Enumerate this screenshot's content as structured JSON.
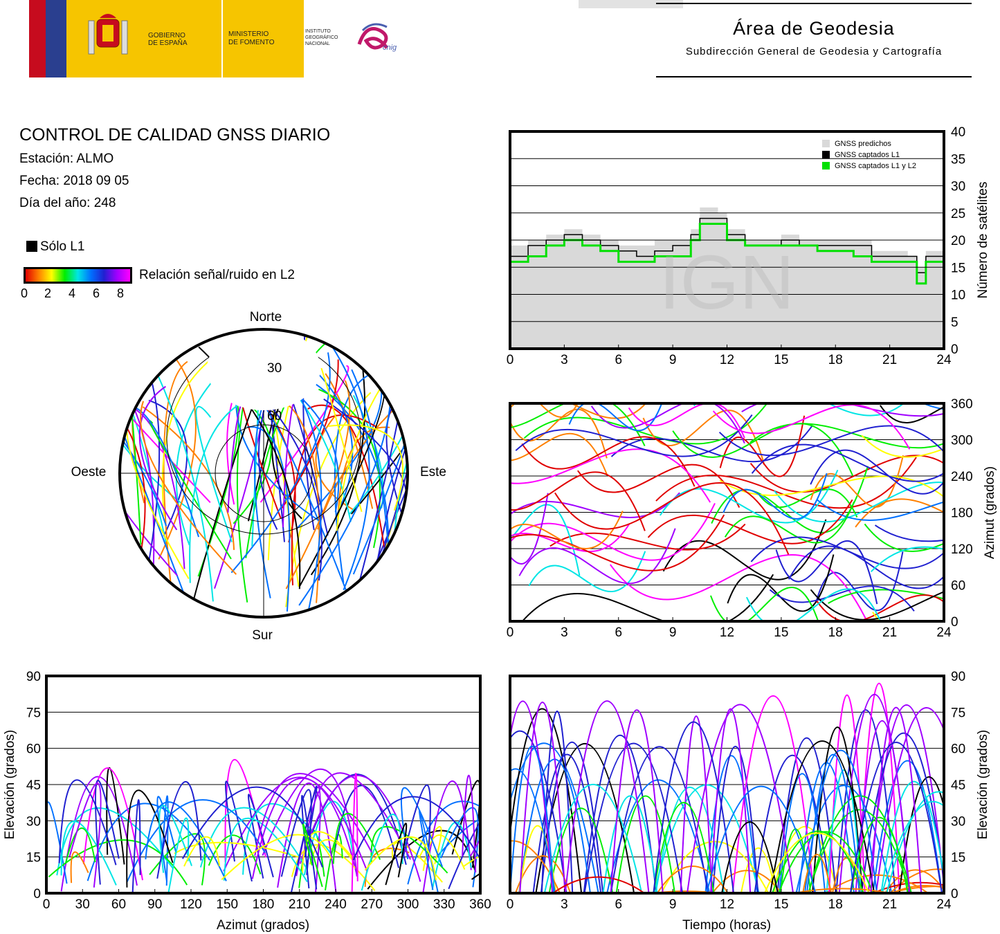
{
  "header": {
    "gov_line1": "GOBIERNO",
    "gov_line2": "DE ESPAÑA",
    "min_line1": "MINISTERIO",
    "min_line2": "DE FOMENTO",
    "ign_line1": "INSTITUTO",
    "ign_line2": "GEOGRÁFICO",
    "ign_line3": "NACIONAL",
    "cnig": "cnig",
    "area_title": "Área de Geodesia",
    "area_subtitle": "Subdirección General de Geodesia y Cartografía"
  },
  "info": {
    "title": "CONTROL DE CALIDAD GNSS DIARIO",
    "station": "Estación: ALMO",
    "date": "Fecha: 2018 09 05",
    "doy": "Día del año: 248",
    "legend_l1": "Sólo L1",
    "colorbar_label": "Relación señal/ruido en L2",
    "colorbar_ticks": [
      "0",
      "2",
      "4",
      "6",
      "8"
    ]
  },
  "watermark": "IGN",
  "colors": {
    "predicted": "#d9d9d9",
    "l1": "#000000",
    "l1l2": "#00e000",
    "snr_scale": [
      "#e00000",
      "#ff8000",
      "#ffff00",
      "#00ee00",
      "#00e5e5",
      "#0070ff",
      "#2020d0",
      "#a000ff",
      "#ff00ff"
    ]
  },
  "chart_data": [
    {
      "id": "satellite_count",
      "type": "area",
      "xlabel": "",
      "ylabel": "Número de satélites",
      "xlim": [
        0,
        24
      ],
      "ylim": [
        0,
        40
      ],
      "xticks": [
        "0",
        "3",
        "6",
        "9",
        "12",
        "15",
        "18",
        "21",
        "24"
      ],
      "yticks": [
        "0",
        "5",
        "10",
        "15",
        "20",
        "25",
        "30",
        "35",
        "40"
      ],
      "grid": true,
      "legend_position": "top-right",
      "series": [
        {
          "name": "GNSS predichos",
          "x": [
            0,
            1,
            2,
            3,
            4,
            5,
            6,
            7,
            8,
            9,
            10,
            10.5,
            11,
            11.5,
            12,
            13,
            14,
            15,
            16,
            17,
            18,
            19,
            20,
            21,
            22,
            22.5,
            23,
            24
          ],
          "values": [
            19,
            20,
            21,
            22,
            21,
            20,
            19,
            19,
            20,
            20,
            22,
            26,
            26,
            25,
            22,
            20,
            20,
            21,
            20,
            20,
            20,
            20,
            18,
            18,
            17,
            15,
            18,
            19
          ]
        },
        {
          "name": "GNSS captados L1",
          "x": [
            0,
            1,
            2,
            3,
            4,
            5,
            6,
            7,
            8,
            9,
            10,
            10.5,
            11,
            11.5,
            12,
            13,
            14,
            15,
            16,
            17,
            18,
            19,
            20,
            21,
            22,
            22.5,
            23,
            24
          ],
          "values": [
            17,
            19,
            20,
            21,
            20,
            19,
            18,
            17,
            18,
            19,
            21,
            24,
            24,
            24,
            21,
            19,
            19,
            20,
            19,
            19,
            19,
            19,
            17,
            17,
            17,
            14,
            17,
            18
          ]
        },
        {
          "name": "GNSS captados L1 y L2",
          "x": [
            0,
            1,
            2,
            3,
            4,
            5,
            6,
            7,
            8,
            9,
            10,
            10.5,
            11,
            11.5,
            12,
            13,
            14,
            15,
            16,
            17,
            18,
            19,
            20,
            21,
            22,
            22.5,
            23,
            24
          ],
          "values": [
            16,
            17,
            19,
            20,
            19,
            18,
            16,
            16,
            17,
            17,
            20,
            23,
            23,
            23,
            20,
            19,
            19,
            19,
            19,
            18,
            18,
            17,
            16,
            16,
            16,
            12,
            16,
            17
          ]
        }
      ]
    },
    {
      "id": "sky_plot",
      "type": "scatter",
      "direction_labels": {
        "north": "Norte",
        "south": "Sur",
        "west": "Oeste",
        "east": "Este"
      },
      "elevation_rings": [
        "30",
        "60"
      ]
    },
    {
      "id": "azimuth_time",
      "type": "scatter",
      "ylabel": "Azimut (grados)",
      "xlim": [
        0,
        24
      ],
      "ylim": [
        0,
        360
      ],
      "xticks": [
        "0",
        "3",
        "6",
        "9",
        "12",
        "15",
        "18",
        "21",
        "24"
      ],
      "yticks": [
        "0",
        "60",
        "120",
        "180",
        "240",
        "300",
        "360"
      ]
    },
    {
      "id": "elevation_azimuth",
      "type": "scatter",
      "xlabel": "Azimut (grados)",
      "ylabel": "Elevación (grados)",
      "xlim": [
        0,
        360
      ],
      "ylim": [
        0,
        90
      ],
      "xticks": [
        "0",
        "30",
        "60",
        "90",
        "120",
        "150",
        "180",
        "210",
        "240",
        "270",
        "300",
        "330",
        "360"
      ],
      "yticks": [
        "0",
        "15",
        "30",
        "45",
        "60",
        "75",
        "90"
      ]
    },
    {
      "id": "elevation_time",
      "type": "line",
      "xlabel": "Tiempo (horas)",
      "ylabel": "Elevación (grados)",
      "xlim": [
        0,
        24
      ],
      "ylim": [
        0,
        90
      ],
      "xticks": [
        "0",
        "3",
        "6",
        "9",
        "12",
        "15",
        "18",
        "21",
        "24"
      ],
      "yticks": [
        "0",
        "15",
        "30",
        "45",
        "60",
        "75",
        "90"
      ]
    }
  ]
}
